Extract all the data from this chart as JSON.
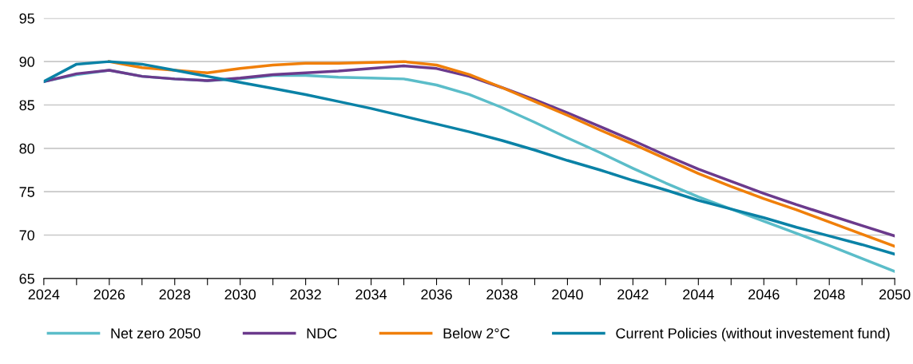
{
  "chart_data": {
    "type": "line",
    "x": [
      2024,
      2025,
      2026,
      2027,
      2028,
      2029,
      2030,
      2031,
      2032,
      2033,
      2034,
      2035,
      2036,
      2037,
      2038,
      2039,
      2040,
      2041,
      2042,
      2043,
      2044,
      2045,
      2046,
      2047,
      2048,
      2049,
      2050
    ],
    "series": [
      {
        "name": "Net zero 2050",
        "color": "#5bbdc9",
        "values": [
          87.7,
          88.5,
          89.0,
          88.3,
          88.0,
          87.8,
          88.0,
          88.4,
          88.4,
          88.2,
          88.1,
          88.0,
          87.3,
          86.2,
          84.7,
          83.0,
          81.2,
          79.5,
          77.7,
          76.0,
          74.4,
          73.0,
          71.6,
          70.2,
          68.8,
          67.3,
          65.8
        ]
      },
      {
        "name": "NDC",
        "color": "#6b3a8c",
        "values": [
          87.7,
          88.6,
          89.0,
          88.3,
          88.0,
          87.8,
          88.1,
          88.5,
          88.7,
          88.9,
          89.2,
          89.5,
          89.2,
          88.3,
          87.0,
          85.6,
          84.1,
          82.5,
          80.9,
          79.2,
          77.6,
          76.2,
          74.8,
          73.5,
          72.3,
          71.1,
          69.9
        ]
      },
      {
        "name": "Below 2°C",
        "color": "#f07f09",
        "values": [
          null,
          null,
          90.0,
          89.3,
          89.0,
          88.7,
          89.2,
          89.6,
          89.8,
          89.8,
          89.9,
          90.0,
          89.6,
          88.5,
          87.0,
          85.4,
          83.8,
          82.1,
          80.5,
          78.8,
          77.1,
          75.6,
          74.2,
          72.9,
          71.5,
          70.1,
          68.7
        ]
      },
      {
        "name": "Current Policies (without investement fund)",
        "color": "#0a82a6",
        "values": [
          87.7,
          89.7,
          90.0,
          89.7,
          89.0,
          88.3,
          87.6,
          86.9,
          86.2,
          85.4,
          84.6,
          83.7,
          82.8,
          81.9,
          80.9,
          79.8,
          78.6,
          77.5,
          76.3,
          75.2,
          74.0,
          73.0,
          72.0,
          70.9,
          69.9,
          68.9,
          67.8
        ]
      }
    ],
    "xlim": [
      2024,
      2050
    ],
    "xticks": [
      2024,
      {
        "value": 2025,
        "label": null
      },
      2026,
      {
        "value": 2027,
        "label": null
      },
      2028,
      {
        "value": 2029,
        "label": null
      },
      2030,
      {
        "value": 2031,
        "label": null
      },
      2032,
      {
        "value": 2033,
        "label": null
      },
      2034,
      {
        "value": 2035,
        "label": null
      },
      2036,
      {
        "value": 2037,
        "label": null
      },
      2038,
      {
        "value": 2039,
        "label": null
      },
      2040,
      {
        "value": 2041,
        "label": null
      },
      2042,
      {
        "value": 2043,
        "label": null
      },
      2044,
      {
        "value": 2045,
        "label": null
      },
      2046,
      {
        "value": 2047,
        "label": null
      },
      2048,
      {
        "value": 2049,
        "label": null
      },
      2050
    ],
    "ylim": [
      65,
      95
    ],
    "yticks": [
      65,
      70,
      75,
      80,
      85,
      90,
      95
    ],
    "grid": "y",
    "legend": "bottom",
    "marker": "none",
    "line_style": "solid"
  }
}
